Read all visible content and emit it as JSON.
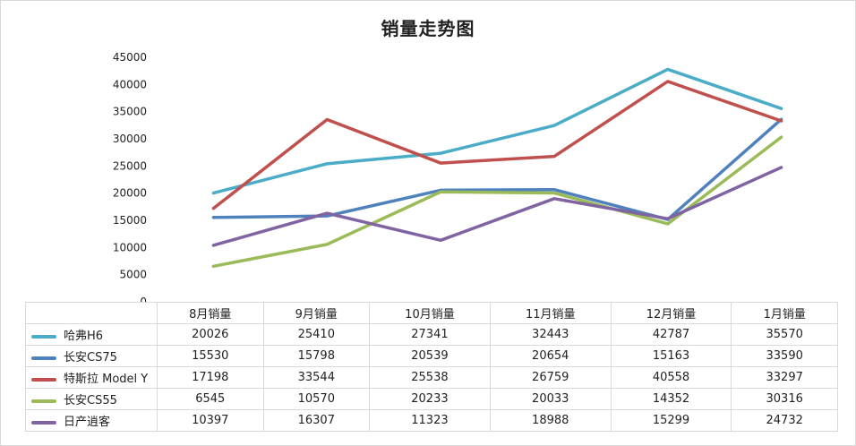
{
  "chart_data": {
    "type": "line",
    "title": "销量走势图",
    "categories": [
      "8月销量",
      "9月销量",
      "10月销量",
      "11月销量",
      "12月销量",
      "1月销量"
    ],
    "ylim": [
      0,
      45000
    ],
    "yticks": [
      "45000",
      "40000",
      "35000",
      "30000",
      "25000",
      "20000",
      "15000",
      "10000",
      "5000",
      "0"
    ],
    "series": [
      {
        "name": "哈弗H6",
        "color": "#4aacc6",
        "values": [
          20026,
          25410,
          27341,
          32443,
          42787,
          35570
        ]
      },
      {
        "name": "长安CS75",
        "color": "#4f81bd",
        "values": [
          15530,
          15798,
          20539,
          20654,
          15163,
          33590
        ]
      },
      {
        "name": "特斯拉 Model Y",
        "color": "#c0504d",
        "values": [
          17198,
          33544,
          25538,
          26759,
          40558,
          33297
        ]
      },
      {
        "name": "长安CS55",
        "color": "#9bbb59",
        "values": [
          6545,
          10570,
          20233,
          20033,
          14352,
          30316
        ]
      },
      {
        "name": "日产逍客",
        "color": "#8064a2",
        "values": [
          10397,
          16307,
          11323,
          18988,
          15299,
          24732
        ]
      }
    ]
  }
}
